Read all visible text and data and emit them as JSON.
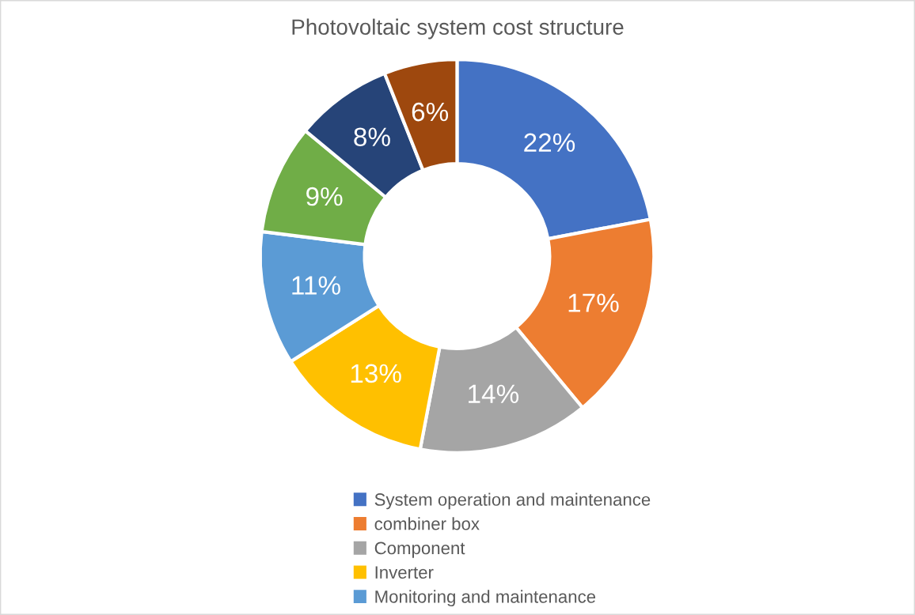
{
  "chart_data": {
    "type": "donut",
    "title": "Photovoltaic system cost structure",
    "categories": [
      "System operation and maintenance",
      "combiner box",
      "Component",
      "Inverter",
      "Monitoring and maintenance",
      null,
      null,
      null
    ],
    "values": [
      22,
      17,
      14,
      13,
      11,
      9,
      8,
      6
    ],
    "value_labels": [
      "22%",
      "17%",
      "14%",
      "13%",
      "11%",
      "9%",
      "8%",
      "6%"
    ],
    "colors": [
      "#4472c4",
      "#ed7d31",
      "#a5a5a5",
      "#ffc000",
      "#5b9bd5",
      "#70ad47",
      "#264478",
      "#9e480e"
    ],
    "legend": "bottom"
  }
}
